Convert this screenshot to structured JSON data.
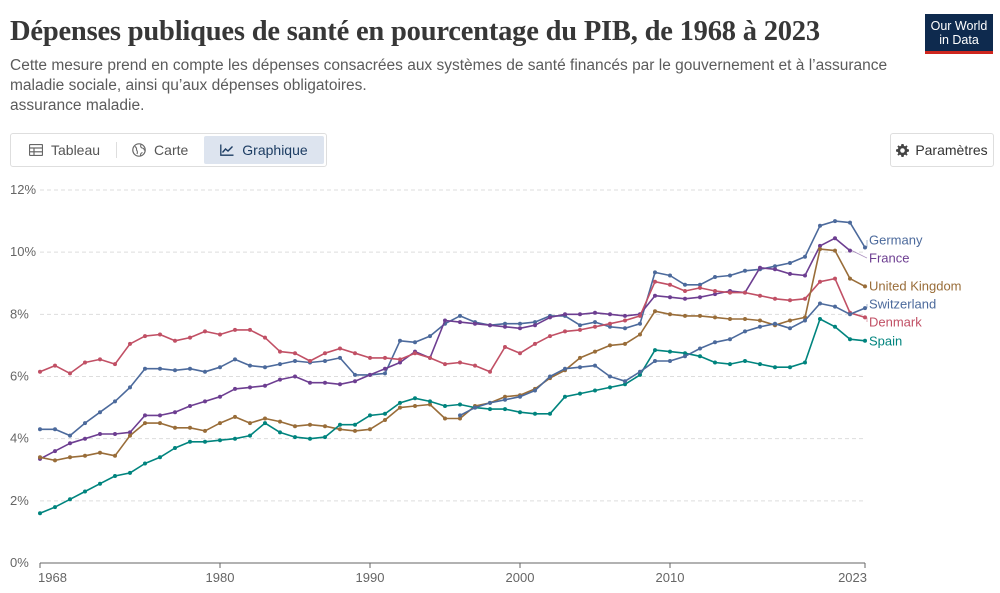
{
  "header": {
    "title": "Dépenses publiques de santé en pourcentage du PIB, de 1968 à 2023",
    "subtitle_line1": "Cette mesure prend en compte les dépenses consacrées aux systèmes de santé financés par le gouvernement et à l’assurance",
    "subtitle_line2": "maladie sociale, ainsi qu’aux dépenses obligatoires.",
    "subtitle_line3": "assurance maladie."
  },
  "logo": {
    "line1": "Our World",
    "line2": "in Data"
  },
  "tabs": [
    {
      "label": "Tableau",
      "icon": "table-icon",
      "active": false
    },
    {
      "label": "Carte",
      "icon": "globe-icon",
      "active": false
    },
    {
      "label": "Graphique",
      "icon": "line-chart-icon",
      "active": true
    }
  ],
  "settings_label": "Paramètres",
  "colors": {
    "Germany": "#4c6a9c",
    "France": "#6d3e91",
    "United Kingdom": "#996d39",
    "Switzerland": "#4c6a9c",
    "Denmark": "#c15065",
    "Spain": "#00847e",
    "grid": "#dddddd",
    "axis": "#666666"
  },
  "chart_data": {
    "type": "line",
    "title": "Dépenses publiques de santé en pourcentage du PIB, de 1968 à 2023",
    "xlabel": "",
    "ylabel": "",
    "ylim": [
      0,
      12
    ],
    "xlim": [
      1968,
      2023
    ],
    "y_ticks": [
      0,
      2,
      4,
      6,
      8,
      10,
      12
    ],
    "y_tick_labels": [
      "0%",
      "2%",
      "4%",
      "6%",
      "8%",
      "10%",
      "12%"
    ],
    "x_ticks": [
      1968,
      1980,
      1990,
      2000,
      2010,
      2023
    ],
    "x_tick_labels": [
      "1968",
      "1980",
      "1990",
      "2000",
      "2010",
      "2023"
    ],
    "grid": "horizontal dashed",
    "legend_position": "right, at line ends",
    "series": [
      {
        "name": "Germany",
        "x": [
          1968,
          1969,
          1970,
          1971,
          1972,
          1973,
          1974,
          1975,
          1976,
          1977,
          1978,
          1979,
          1980,
          1981,
          1982,
          1983,
          1984,
          1985,
          1986,
          1987,
          1988,
          1989,
          1990,
          1991,
          1992,
          1993,
          1994,
          1995,
          1996,
          1997,
          1998,
          1999,
          2000,
          2001,
          2002,
          2003,
          2004,
          2005,
          2006,
          2007,
          2008,
          2009,
          2010,
          2011,
          2012,
          2013,
          2014,
          2015,
          2016,
          2017,
          2018,
          2019,
          2020,
          2021,
          2022,
          2023
        ],
        "values": [
          4.3,
          4.3,
          4.1,
          4.5,
          4.85,
          5.2,
          5.65,
          6.25,
          6.25,
          6.2,
          6.25,
          6.15,
          6.3,
          6.55,
          6.35,
          6.3,
          6.4,
          6.5,
          6.45,
          6.5,
          6.6,
          6.05,
          6.05,
          6.1,
          7.15,
          7.1,
          7.3,
          7.7,
          7.95,
          7.75,
          7.65,
          7.7,
          7.7,
          7.75,
          7.95,
          7.95,
          7.65,
          7.75,
          7.6,
          7.55,
          7.7,
          9.35,
          9.25,
          8.95,
          8.95,
          9.2,
          9.25,
          9.4,
          9.45,
          9.55,
          9.65,
          9.85,
          10.85,
          11.0,
          10.95,
          10.15
        ]
      },
      {
        "name": "France",
        "x": [
          1968,
          1969,
          1970,
          1971,
          1972,
          1973,
          1974,
          1975,
          1976,
          1977,
          1978,
          1979,
          1980,
          1981,
          1982,
          1983,
          1984,
          1985,
          1986,
          1987,
          1988,
          1989,
          1990,
          1991,
          1992,
          1993,
          1994,
          1995,
          1996,
          1997,
          1998,
          1999,
          2000,
          2001,
          2002,
          2003,
          2004,
          2005,
          2006,
          2007,
          2008,
          2009,
          2010,
          2011,
          2012,
          2013,
          2014,
          2015,
          2016,
          2017,
          2018,
          2019,
          2020,
          2021,
          2022
        ],
        "values": [
          3.35,
          3.6,
          3.85,
          4.0,
          4.15,
          4.15,
          4.2,
          4.75,
          4.75,
          4.85,
          5.05,
          5.2,
          5.35,
          5.6,
          5.65,
          5.7,
          5.9,
          6.0,
          5.8,
          5.8,
          5.75,
          5.85,
          6.05,
          6.25,
          6.45,
          6.8,
          6.6,
          7.8,
          7.75,
          7.7,
          7.65,
          7.6,
          7.55,
          7.65,
          7.9,
          8.0,
          8.0,
          8.05,
          8.0,
          7.95,
          8.0,
          8.6,
          8.55,
          8.5,
          8.55,
          8.65,
          8.75,
          8.7,
          9.5,
          9.45,
          9.3,
          9.25,
          10.2,
          10.45,
          10.05
        ]
      },
      {
        "name": "United Kingdom",
        "x": [
          1968,
          1969,
          1970,
          1971,
          1972,
          1973,
          1974,
          1975,
          1976,
          1977,
          1978,
          1979,
          1980,
          1981,
          1982,
          1983,
          1984,
          1985,
          1986,
          1987,
          1988,
          1989,
          1990,
          1991,
          1992,
          1993,
          1994,
          1995,
          1996,
          1997,
          1998,
          1999,
          2000,
          2001,
          2002,
          2003,
          2004,
          2005,
          2006,
          2007,
          2008,
          2009,
          2010,
          2011,
          2012,
          2013,
          2014,
          2015,
          2016,
          2017,
          2018,
          2019,
          2020,
          2021,
          2022,
          2023
        ],
        "values": [
          3.4,
          3.3,
          3.4,
          3.45,
          3.55,
          3.45,
          4.1,
          4.5,
          4.5,
          4.35,
          4.35,
          4.25,
          4.5,
          4.7,
          4.5,
          4.65,
          4.55,
          4.4,
          4.45,
          4.4,
          4.3,
          4.25,
          4.3,
          4.6,
          5.0,
          5.05,
          5.1,
          4.65,
          4.65,
          5.05,
          5.15,
          5.35,
          5.4,
          5.6,
          5.95,
          6.2,
          6.6,
          6.8,
          7.0,
          7.05,
          7.35,
          8.1,
          8.0,
          7.95,
          7.95,
          7.9,
          7.85,
          7.85,
          7.8,
          7.65,
          7.8,
          7.9,
          10.1,
          10.05,
          9.15,
          8.9
        ]
      },
      {
        "name": "Switzerland",
        "x": [
          1996,
          1997,
          1998,
          1999,
          2000,
          2001,
          2002,
          2003,
          2004,
          2005,
          2006,
          2007,
          2008,
          2009,
          2010,
          2011,
          2012,
          2013,
          2014,
          2015,
          2016,
          2017,
          2018,
          2019,
          2020,
          2021,
          2022,
          2023
        ],
        "values": [
          4.75,
          5.0,
          5.15,
          5.25,
          5.35,
          5.55,
          6.0,
          6.25,
          6.3,
          6.35,
          6.0,
          5.85,
          6.15,
          6.5,
          6.5,
          6.65,
          6.9,
          7.1,
          7.2,
          7.45,
          7.6,
          7.7,
          7.55,
          7.8,
          8.35,
          8.25,
          8.0,
          8.2
        ]
      },
      {
        "name": "Denmark",
        "x": [
          1968,
          1969,
          1970,
          1971,
          1972,
          1973,
          1974,
          1975,
          1976,
          1977,
          1978,
          1979,
          1980,
          1981,
          1982,
          1983,
          1984,
          1985,
          1986,
          1987,
          1988,
          1989,
          1990,
          1991,
          1992,
          1993,
          1994,
          1995,
          1996,
          1997,
          1998,
          1999,
          2000,
          2001,
          2002,
          2003,
          2004,
          2005,
          2006,
          2007,
          2008,
          2009,
          2010,
          2011,
          2012,
          2013,
          2014,
          2015,
          2016,
          2017,
          2018,
          2019,
          2020,
          2021,
          2022,
          2023
        ],
        "values": [
          6.15,
          6.35,
          6.1,
          6.45,
          6.55,
          6.4,
          7.05,
          7.3,
          7.35,
          7.15,
          7.25,
          7.45,
          7.35,
          7.5,
          7.5,
          7.25,
          6.8,
          6.75,
          6.5,
          6.75,
          6.9,
          6.75,
          6.6,
          6.6,
          6.55,
          6.75,
          6.6,
          6.4,
          6.45,
          6.35,
          6.15,
          6.95,
          6.75,
          7.05,
          7.3,
          7.45,
          7.5,
          7.6,
          7.7,
          7.8,
          7.95,
          9.05,
          8.95,
          8.75,
          8.85,
          8.75,
          8.7,
          8.7,
          8.6,
          8.5,
          8.45,
          8.5,
          9.05,
          9.15,
          8.05,
          7.9
        ]
      },
      {
        "name": "Spain",
        "x": [
          1968,
          1969,
          1970,
          1971,
          1972,
          1973,
          1974,
          1975,
          1976,
          1977,
          1978,
          1979,
          1980,
          1981,
          1982,
          1983,
          1984,
          1985,
          1986,
          1987,
          1988,
          1989,
          1990,
          1991,
          1992,
          1993,
          1994,
          1995,
          1996,
          1997,
          1998,
          1999,
          2000,
          2001,
          2002,
          2003,
          2004,
          2005,
          2006,
          2007,
          2008,
          2009,
          2010,
          2011,
          2012,
          2013,
          2014,
          2015,
          2016,
          2017,
          2018,
          2019,
          2020,
          2021,
          2022,
          2023
        ],
        "values": [
          1.6,
          1.8,
          2.05,
          2.3,
          2.55,
          2.8,
          2.9,
          3.2,
          3.4,
          3.7,
          3.9,
          3.9,
          3.95,
          4.0,
          4.1,
          4.5,
          4.2,
          4.05,
          4.0,
          4.05,
          4.45,
          4.45,
          4.75,
          4.8,
          5.15,
          5.3,
          5.2,
          5.05,
          5.1,
          5.0,
          4.95,
          4.95,
          4.85,
          4.8,
          4.8,
          5.35,
          5.45,
          5.55,
          5.65,
          5.75,
          6.05,
          6.85,
          6.8,
          6.75,
          6.65,
          6.45,
          6.4,
          6.5,
          6.4,
          6.3,
          6.3,
          6.45,
          7.85,
          7.6,
          7.2,
          7.15
        ]
      }
    ]
  }
}
